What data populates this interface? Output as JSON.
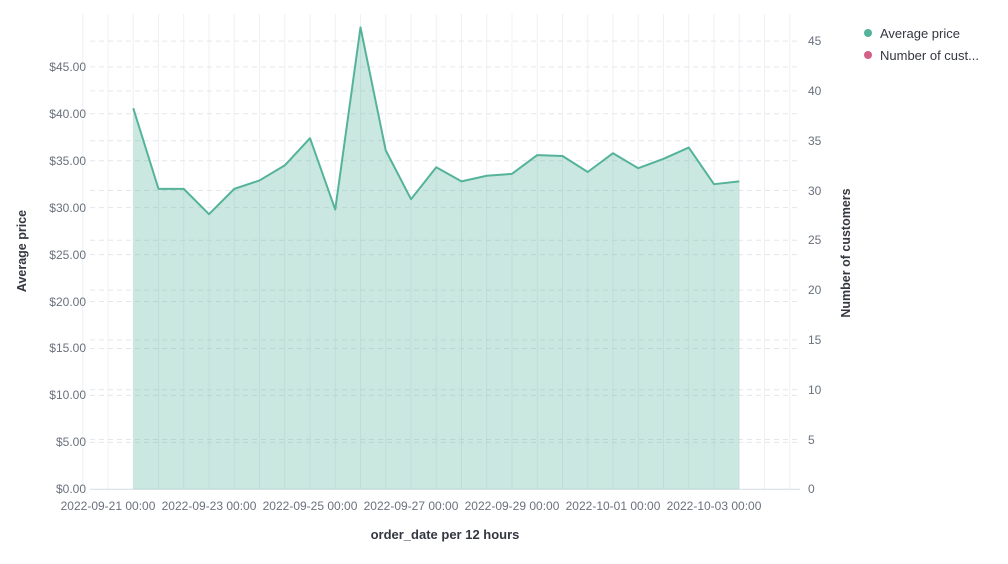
{
  "legend": {
    "position": "top-right",
    "items": [
      {
        "label": "Average price",
        "color": "#54B399"
      },
      {
        "label": "Number of cust...",
        "color": "#D36086"
      }
    ]
  },
  "chart_data": {
    "type": "area",
    "title": "",
    "background": "#FFFFFF",
    "grid": true,
    "x_axis": {
      "title": "order_date per 12 hours",
      "interval": "12 hours",
      "tick_labels": [
        "2022-09-21 00:00",
        "2022-09-23 00:00",
        "2022-09-25 00:00",
        "2022-09-27 00:00",
        "2022-09-29 00:00",
        "2022-10-01 00:00",
        "2022-10-03 00:00"
      ]
    },
    "left_axis": {
      "title": "Average price",
      "tick_labels": [
        "$0.00",
        "$5.00",
        "$10.00",
        "$15.00",
        "$20.00",
        "$25.00",
        "$30.00",
        "$35.00",
        "$40.00",
        "$45.00"
      ],
      "tick_step": 5,
      "range": [
        0,
        50.6
      ]
    },
    "right_axis": {
      "title": "Number of customers",
      "tick_labels": [
        "0",
        "5",
        "10",
        "15",
        "20",
        "25",
        "30",
        "35",
        "40",
        "45"
      ],
      "tick_step": 5,
      "range": [
        0,
        47.7
      ]
    },
    "series": [
      {
        "name": "Average price",
        "type": "area",
        "axis": "left",
        "color": "#54B399",
        "fill_opacity": 0.3,
        "x": [
          "2022-09-21 12:00",
          "2022-09-22 00:00",
          "2022-09-22 12:00",
          "2022-09-23 00:00",
          "2022-09-23 12:00",
          "2022-09-24 00:00",
          "2022-09-24 12:00",
          "2022-09-25 00:00",
          "2022-09-25 12:00",
          "2022-09-26 00:00",
          "2022-09-26 12:00",
          "2022-09-27 00:00",
          "2022-09-27 12:00",
          "2022-09-28 00:00",
          "2022-09-28 12:00",
          "2022-09-29 00:00",
          "2022-09-29 12:00",
          "2022-09-30 00:00",
          "2022-09-30 12:00",
          "2022-10-01 00:00",
          "2022-10-01 12:00",
          "2022-10-02 00:00",
          "2022-10-02 12:00",
          "2022-10-03 00:00",
          "2022-10-03 12:00"
        ],
        "values": [
          40.6,
          32.0,
          32.0,
          29.3,
          32.0,
          32.9,
          34.5,
          37.4,
          29.8,
          49.2,
          36.1,
          30.9,
          34.3,
          32.8,
          33.4,
          33.6,
          35.6,
          35.5,
          33.8,
          35.8,
          34.2,
          35.2,
          36.4,
          32.5,
          32.8
        ]
      },
      {
        "name": "Number of customers",
        "legend_label": "Number of cust...",
        "type": "line",
        "axis": "right",
        "color": "#D36086",
        "values": []
      }
    ]
  },
  "colors": {
    "tick_label": "#6a717d",
    "axis_title": "#343741",
    "grid_vertical": "#eef0f3",
    "grid_dashed": "#e3e7ec",
    "baseline": "#d3dae6"
  }
}
